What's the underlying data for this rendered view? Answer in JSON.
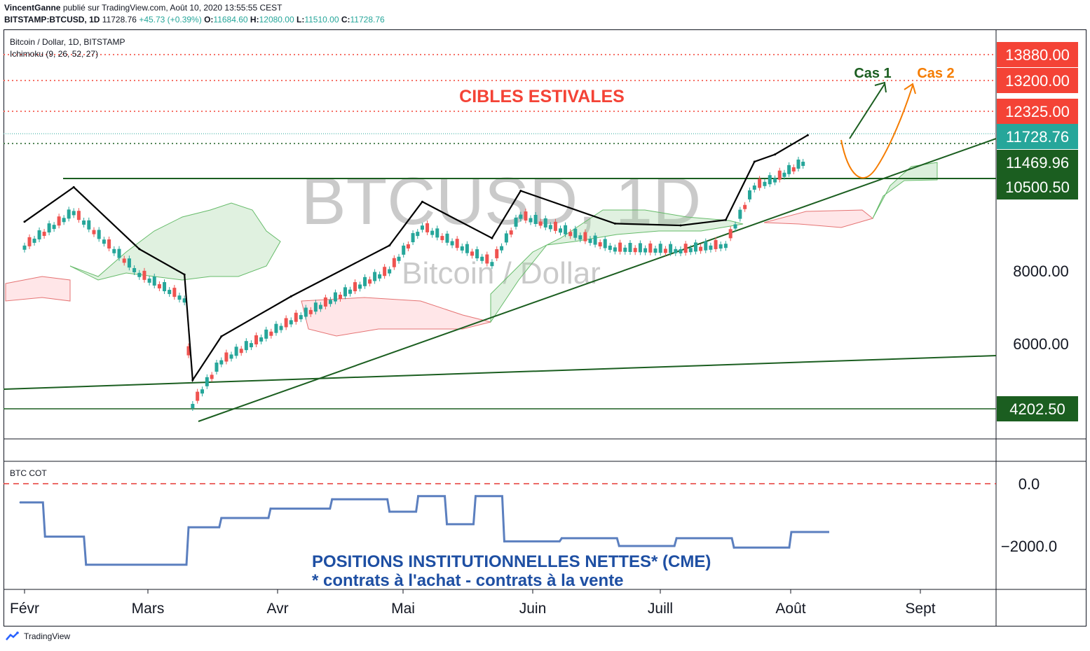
{
  "header": {
    "author": "VincentGanne",
    "published": "publié sur TradingView.com, Août 10, 2020 13:55:55 CEST",
    "symbol": "BITSTAMP:BTCUSD, 1D",
    "last": "11728.76",
    "change": "+45.73 (+0.39%)",
    "o_label": "O:",
    "o": "11684.60",
    "h_label": "H:",
    "h": "12080.00",
    "l_label": "L:",
    "l": "11510.00",
    "c_label": "C:",
    "c": "11728.76"
  },
  "legend": {
    "series": "Bitcoin / Dollar, 1D, BITSTAMP",
    "indicator": "Ichimoku (9, 26, 52, 27)",
    "cot": "BTC COT"
  },
  "watermark": {
    "big": "BTCUSD, 1D",
    "small": "Bitcoin / Dollar"
  },
  "annotations": {
    "targets": "CIBLES ESTIVALES",
    "case1": "Cas 1",
    "case2": "Cas 2",
    "positions_title": "POSITIONS INSTITUTIONNELLES NETTES* (CME)",
    "positions_note": "* contrats à l'achat - contrats à la vente"
  },
  "colors": {
    "up": "#26a69a",
    "down": "#ef5350",
    "target": "#f44336",
    "support": "#1b5e20",
    "current": "#26a69a",
    "cot": "#5b7fbf",
    "case1": "#1b5e20",
    "case2": "#f57c00",
    "positions": "#1e4fa3"
  },
  "chart_data": {
    "type": "line",
    "title": "BTCUSD, 1D",
    "y_axis_ticks": [
      "8000.00",
      "6000.00"
    ],
    "price_labels": [
      {
        "value": 13880.0,
        "text": "13880.00",
        "kind": "target"
      },
      {
        "value": 13200.0,
        "text": "13200.00",
        "kind": "target"
      },
      {
        "value": 12325.0,
        "text": "12325.00",
        "kind": "target"
      },
      {
        "value": 11728.76,
        "text": "11728.76",
        "kind": "current"
      },
      {
        "value": 11469.96,
        "text": "11469.96",
        "kind": "support"
      },
      {
        "value": 10500.5,
        "text": "10500.50",
        "kind": "support"
      },
      {
        "value": 4202.5,
        "text": "4202.50",
        "kind": "support"
      }
    ],
    "x_ticks": [
      "Févr",
      "Mars",
      "Avr",
      "Mai",
      "Juin",
      "Juill",
      "Août",
      "Sept"
    ],
    "price_series": [
      {
        "x": "2020-02-01",
        "y": 9350
      },
      {
        "x": "2020-02-13",
        "y": 10300
      },
      {
        "x": "2020-02-29",
        "y": 8600
      },
      {
        "x": "2020-03-11",
        "y": 7900
      },
      {
        "x": "2020-03-13",
        "y": 5000
      },
      {
        "x": "2020-03-20",
        "y": 6200
      },
      {
        "x": "2020-04-06",
        "y": 7300
      },
      {
        "x": "2020-04-30",
        "y": 8700
      },
      {
        "x": "2020-05-08",
        "y": 9900
      },
      {
        "x": "2020-05-25",
        "y": 8900
      },
      {
        "x": "2020-06-01",
        "y": 10200
      },
      {
        "x": "2020-06-24",
        "y": 9300
      },
      {
        "x": "2020-07-10",
        "y": 9250
      },
      {
        "x": "2020-07-21",
        "y": 9400
      },
      {
        "x": "2020-07-28",
        "y": 11000
      },
      {
        "x": "2020-08-02",
        "y": 11200
      },
      {
        "x": "2020-08-10",
        "y": 11728.76
      }
    ],
    "cot_axis_ticks": [
      "0.0",
      "−2000.0"
    ],
    "cot_series": [
      {
        "x": "2020-01-31",
        "y": -600
      },
      {
        "x": "2020-02-06",
        "y": -1700
      },
      {
        "x": "2020-02-16",
        "y": -2600
      },
      {
        "x": "2020-03-12",
        "y": -1400
      },
      {
        "x": "2020-03-20",
        "y": -1100
      },
      {
        "x": "2020-04-01",
        "y": -800
      },
      {
        "x": "2020-04-16",
        "y": -500
      },
      {
        "x": "2020-04-30",
        "y": -900
      },
      {
        "x": "2020-05-07",
        "y": -400
      },
      {
        "x": "2020-05-14",
        "y": -1300
      },
      {
        "x": "2020-05-21",
        "y": -400
      },
      {
        "x": "2020-05-28",
        "y": -1850
      },
      {
        "x": "2020-06-11",
        "y": -1750
      },
      {
        "x": "2020-06-25",
        "y": -2000
      },
      {
        "x": "2020-07-09",
        "y": -1750
      },
      {
        "x": "2020-07-23",
        "y": -2050
      },
      {
        "x": "2020-08-06",
        "y": -1550
      }
    ]
  },
  "footer": {
    "brand": "TradingView"
  }
}
